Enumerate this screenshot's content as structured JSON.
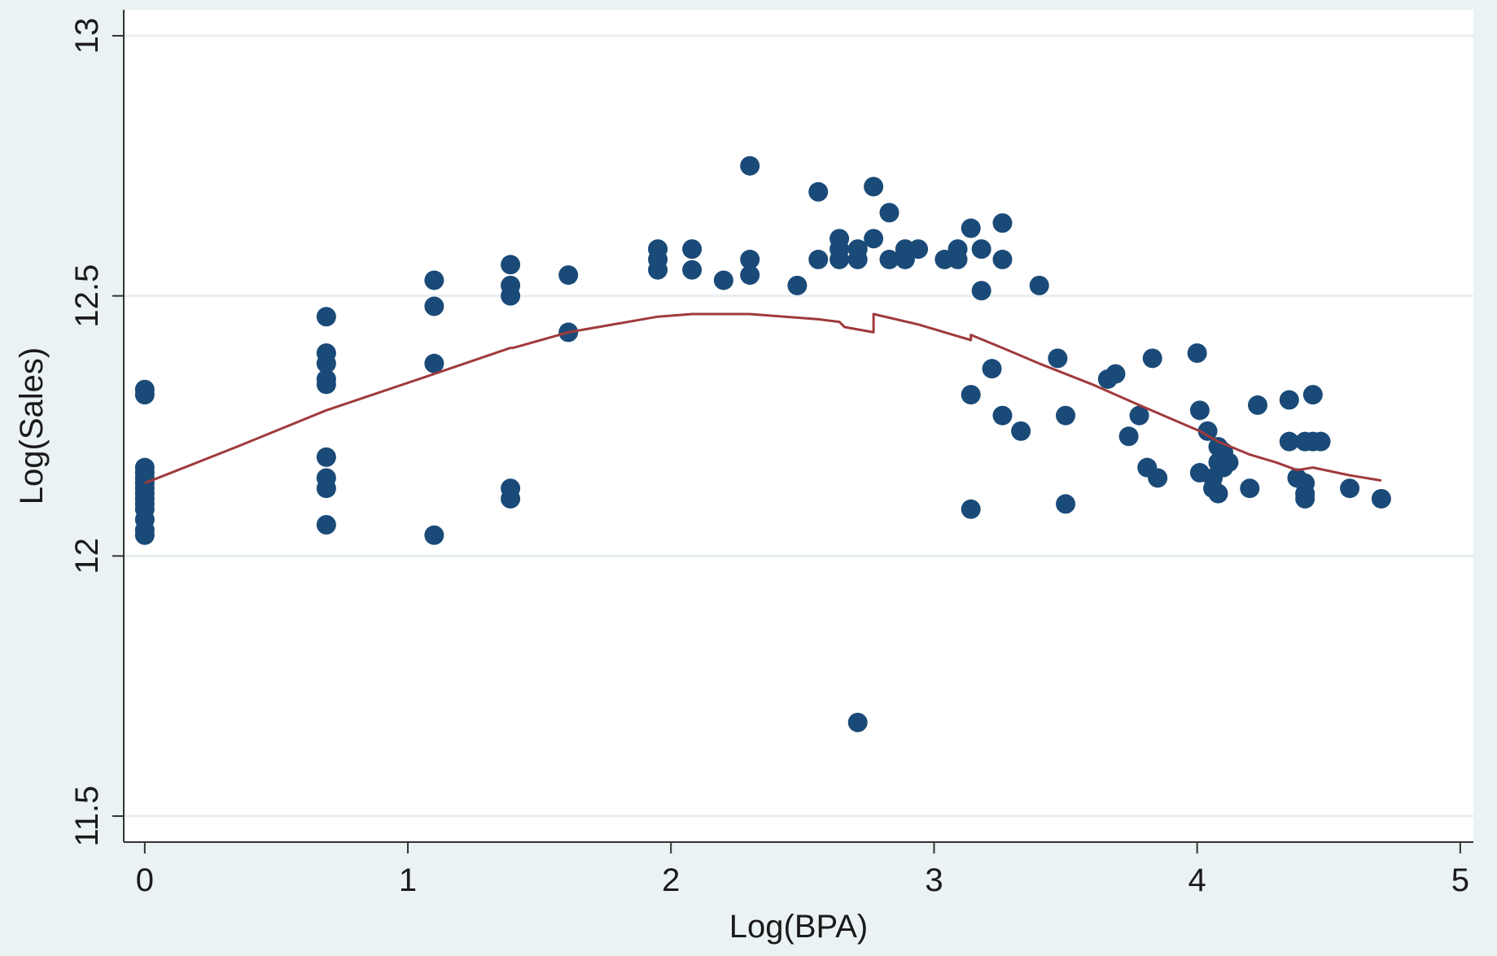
{
  "chart_data": {
    "type": "scatter",
    "title": "",
    "xlabel": "Log(BPA)",
    "ylabel": "Log(Sales)",
    "xlim": [
      -0.08,
      5.05
    ],
    "ylim": [
      11.45,
      13.05
    ],
    "xticks": [
      0,
      1,
      2,
      3,
      4,
      5
    ],
    "yticks": [
      11.5,
      12,
      12.5,
      13
    ],
    "xtick_labels": [
      "0",
      "1",
      "2",
      "3",
      "4",
      "5"
    ],
    "ytick_labels": [
      "11.5",
      "12",
      "12.5",
      "13"
    ],
    "grid": true,
    "legend": "none",
    "colors": {
      "background": "#eaf2f3",
      "plot_area": "#ffffff",
      "points": "#1a4a78",
      "line": "#a03a3c",
      "grid": "#e8eef0",
      "axis": "#333333"
    },
    "series": [
      {
        "type": "scatter",
        "points": [
          [
            0,
            12.32
          ],
          [
            0,
            12.31
          ],
          [
            0,
            12.17
          ],
          [
            0,
            12.16
          ],
          [
            0,
            12.15
          ],
          [
            0,
            12.14
          ],
          [
            0,
            12.13
          ],
          [
            0,
            12.12
          ],
          [
            0,
            12.11
          ],
          [
            0,
            12.1
          ],
          [
            0,
            12.09
          ],
          [
            0,
            12.07
          ],
          [
            0,
            12.05
          ],
          [
            0,
            12.04
          ],
          [
            0.69,
            12.46
          ],
          [
            0.69,
            12.39
          ],
          [
            0.69,
            12.37
          ],
          [
            0.69,
            12.34
          ],
          [
            0.69,
            12.33
          ],
          [
            0.69,
            12.19
          ],
          [
            0.69,
            12.15
          ],
          [
            0.69,
            12.13
          ],
          [
            0.69,
            12.06
          ],
          [
            1.1,
            12.53
          ],
          [
            1.1,
            12.48
          ],
          [
            1.1,
            12.37
          ],
          [
            1.1,
            12.04
          ],
          [
            1.39,
            12.56
          ],
          [
            1.39,
            12.52
          ],
          [
            1.39,
            12.5
          ],
          [
            1.39,
            12.13
          ],
          [
            1.39,
            12.11
          ],
          [
            1.61,
            12.54
          ],
          [
            1.61,
            12.43
          ],
          [
            1.95,
            12.59
          ],
          [
            1.95,
            12.57
          ],
          [
            1.95,
            12.55
          ],
          [
            2.08,
            12.59
          ],
          [
            2.08,
            12.55
          ],
          [
            2.2,
            12.53
          ],
          [
            2.3,
            12.75
          ],
          [
            2.3,
            12.57
          ],
          [
            2.3,
            12.54
          ],
          [
            2.48,
            12.52
          ],
          [
            2.56,
            12.7
          ],
          [
            2.56,
            12.57
          ],
          [
            2.64,
            12.61
          ],
          [
            2.64,
            12.59
          ],
          [
            2.64,
            12.57
          ],
          [
            2.71,
            12.59
          ],
          [
            2.71,
            12.57
          ],
          [
            2.71,
            11.68
          ],
          [
            2.77,
            12.71
          ],
          [
            2.77,
            12.61
          ],
          [
            2.83,
            12.66
          ],
          [
            2.83,
            12.57
          ],
          [
            2.89,
            12.59
          ],
          [
            2.89,
            12.57
          ],
          [
            2.94,
            12.59
          ],
          [
            3.04,
            12.57
          ],
          [
            3.09,
            12.59
          ],
          [
            3.09,
            12.57
          ],
          [
            3.14,
            12.63
          ],
          [
            3.14,
            12.31
          ],
          [
            3.14,
            12.09
          ],
          [
            3.18,
            12.59
          ],
          [
            3.18,
            12.51
          ],
          [
            3.22,
            12.36
          ],
          [
            3.26,
            12.64
          ],
          [
            3.26,
            12.57
          ],
          [
            3.26,
            12.27
          ],
          [
            3.33,
            12.24
          ],
          [
            3.4,
            12.52
          ],
          [
            3.47,
            12.38
          ],
          [
            3.5,
            12.27
          ],
          [
            3.5,
            12.1
          ],
          [
            3.66,
            12.34
          ],
          [
            3.69,
            12.35
          ],
          [
            3.74,
            12.23
          ],
          [
            3.78,
            12.27
          ],
          [
            3.81,
            12.17
          ],
          [
            3.83,
            12.38
          ],
          [
            3.85,
            12.15
          ],
          [
            4.0,
            12.39
          ],
          [
            4.01,
            12.28
          ],
          [
            4.01,
            12.16
          ],
          [
            4.04,
            12.24
          ],
          [
            4.06,
            12.15
          ],
          [
            4.06,
            12.13
          ],
          [
            4.08,
            12.21
          ],
          [
            4.08,
            12.18
          ],
          [
            4.08,
            12.12
          ],
          [
            4.1,
            12.2
          ],
          [
            4.1,
            12.17
          ],
          [
            4.12,
            12.18
          ],
          [
            4.2,
            12.13
          ],
          [
            4.23,
            12.29
          ],
          [
            4.35,
            12.3
          ],
          [
            4.35,
            12.22
          ],
          [
            4.38,
            12.15
          ],
          [
            4.41,
            12.22
          ],
          [
            4.41,
            12.14
          ],
          [
            4.41,
            12.12
          ],
          [
            4.41,
            12.11
          ],
          [
            4.44,
            12.31
          ],
          [
            4.44,
            12.22
          ],
          [
            4.47,
            12.22
          ],
          [
            4.58,
            12.13
          ],
          [
            4.7,
            12.11
          ]
        ]
      },
      {
        "type": "line",
        "points": [
          [
            0,
            12.14
          ],
          [
            0.35,
            12.21
          ],
          [
            0.69,
            12.28
          ],
          [
            1.1,
            12.35
          ],
          [
            1.39,
            12.4
          ],
          [
            1.4,
            12.4
          ],
          [
            1.61,
            12.43
          ],
          [
            1.95,
            12.46
          ],
          [
            2.08,
            12.465
          ],
          [
            2.3,
            12.465
          ],
          [
            2.56,
            12.455
          ],
          [
            2.64,
            12.45
          ],
          [
            2.66,
            12.44
          ],
          [
            2.77,
            12.43
          ],
          [
            2.77,
            12.465
          ],
          [
            2.94,
            12.445
          ],
          [
            3.04,
            12.43
          ],
          [
            3.14,
            12.415
          ],
          [
            3.14,
            12.425
          ],
          [
            3.26,
            12.4
          ],
          [
            3.4,
            12.37
          ],
          [
            3.6,
            12.33
          ],
          [
            3.78,
            12.29
          ],
          [
            4.01,
            12.24
          ],
          [
            4.08,
            12.22
          ],
          [
            4.2,
            12.195
          ],
          [
            4.3,
            12.18
          ],
          [
            4.38,
            12.165
          ],
          [
            4.44,
            12.17
          ],
          [
            4.58,
            12.155
          ],
          [
            4.7,
            12.145
          ]
        ]
      }
    ]
  }
}
